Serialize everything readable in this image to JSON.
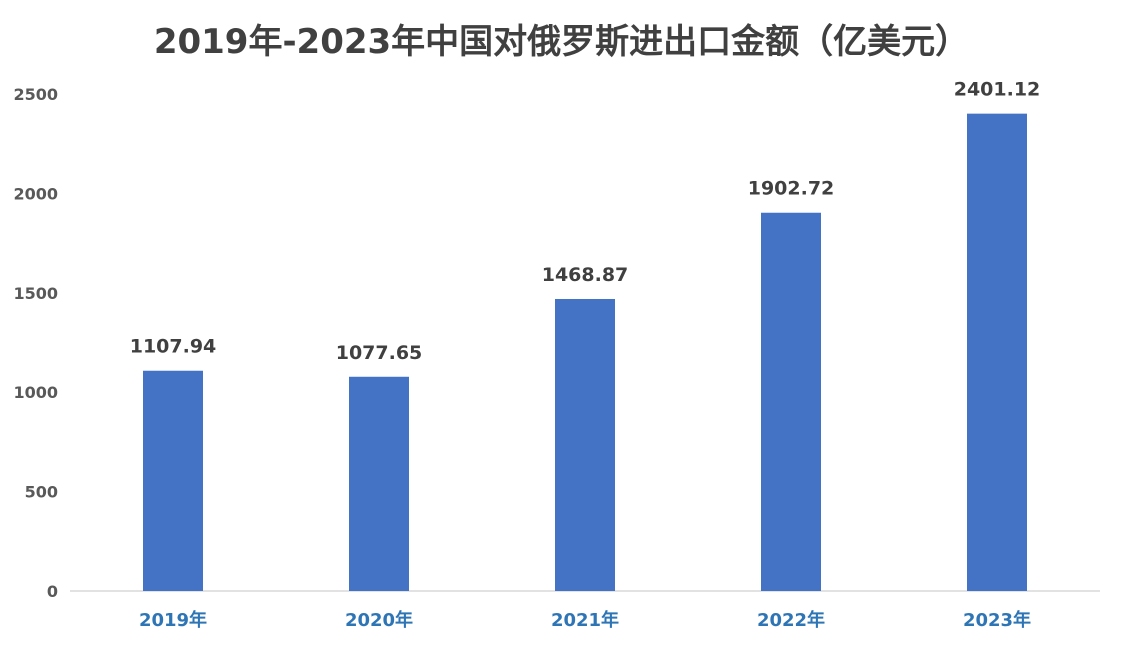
{
  "chart_data": {
    "type": "bar",
    "title": "2019年-2023年中国对俄罗斯进出口金额（亿美元）",
    "xlabel": "",
    "ylabel": "",
    "categories": [
      "2019年",
      "2020年",
      "2021年",
      "2022年",
      "2023年"
    ],
    "values": [
      1107.94,
      1077.65,
      1468.87,
      1902.72,
      2401.12
    ],
    "data_labels": [
      "1107.94",
      "1077.65",
      "1468.87",
      "1902.72",
      "2401.12"
    ],
    "yticks": [
      "0",
      "500",
      "1000",
      "1500",
      "2000",
      "2500"
    ],
    "ylim": [
      0,
      2500
    ],
    "grid": false,
    "legend": "none",
    "bar_color": "#4472c4",
    "category_label_color": "#2e75b6"
  }
}
